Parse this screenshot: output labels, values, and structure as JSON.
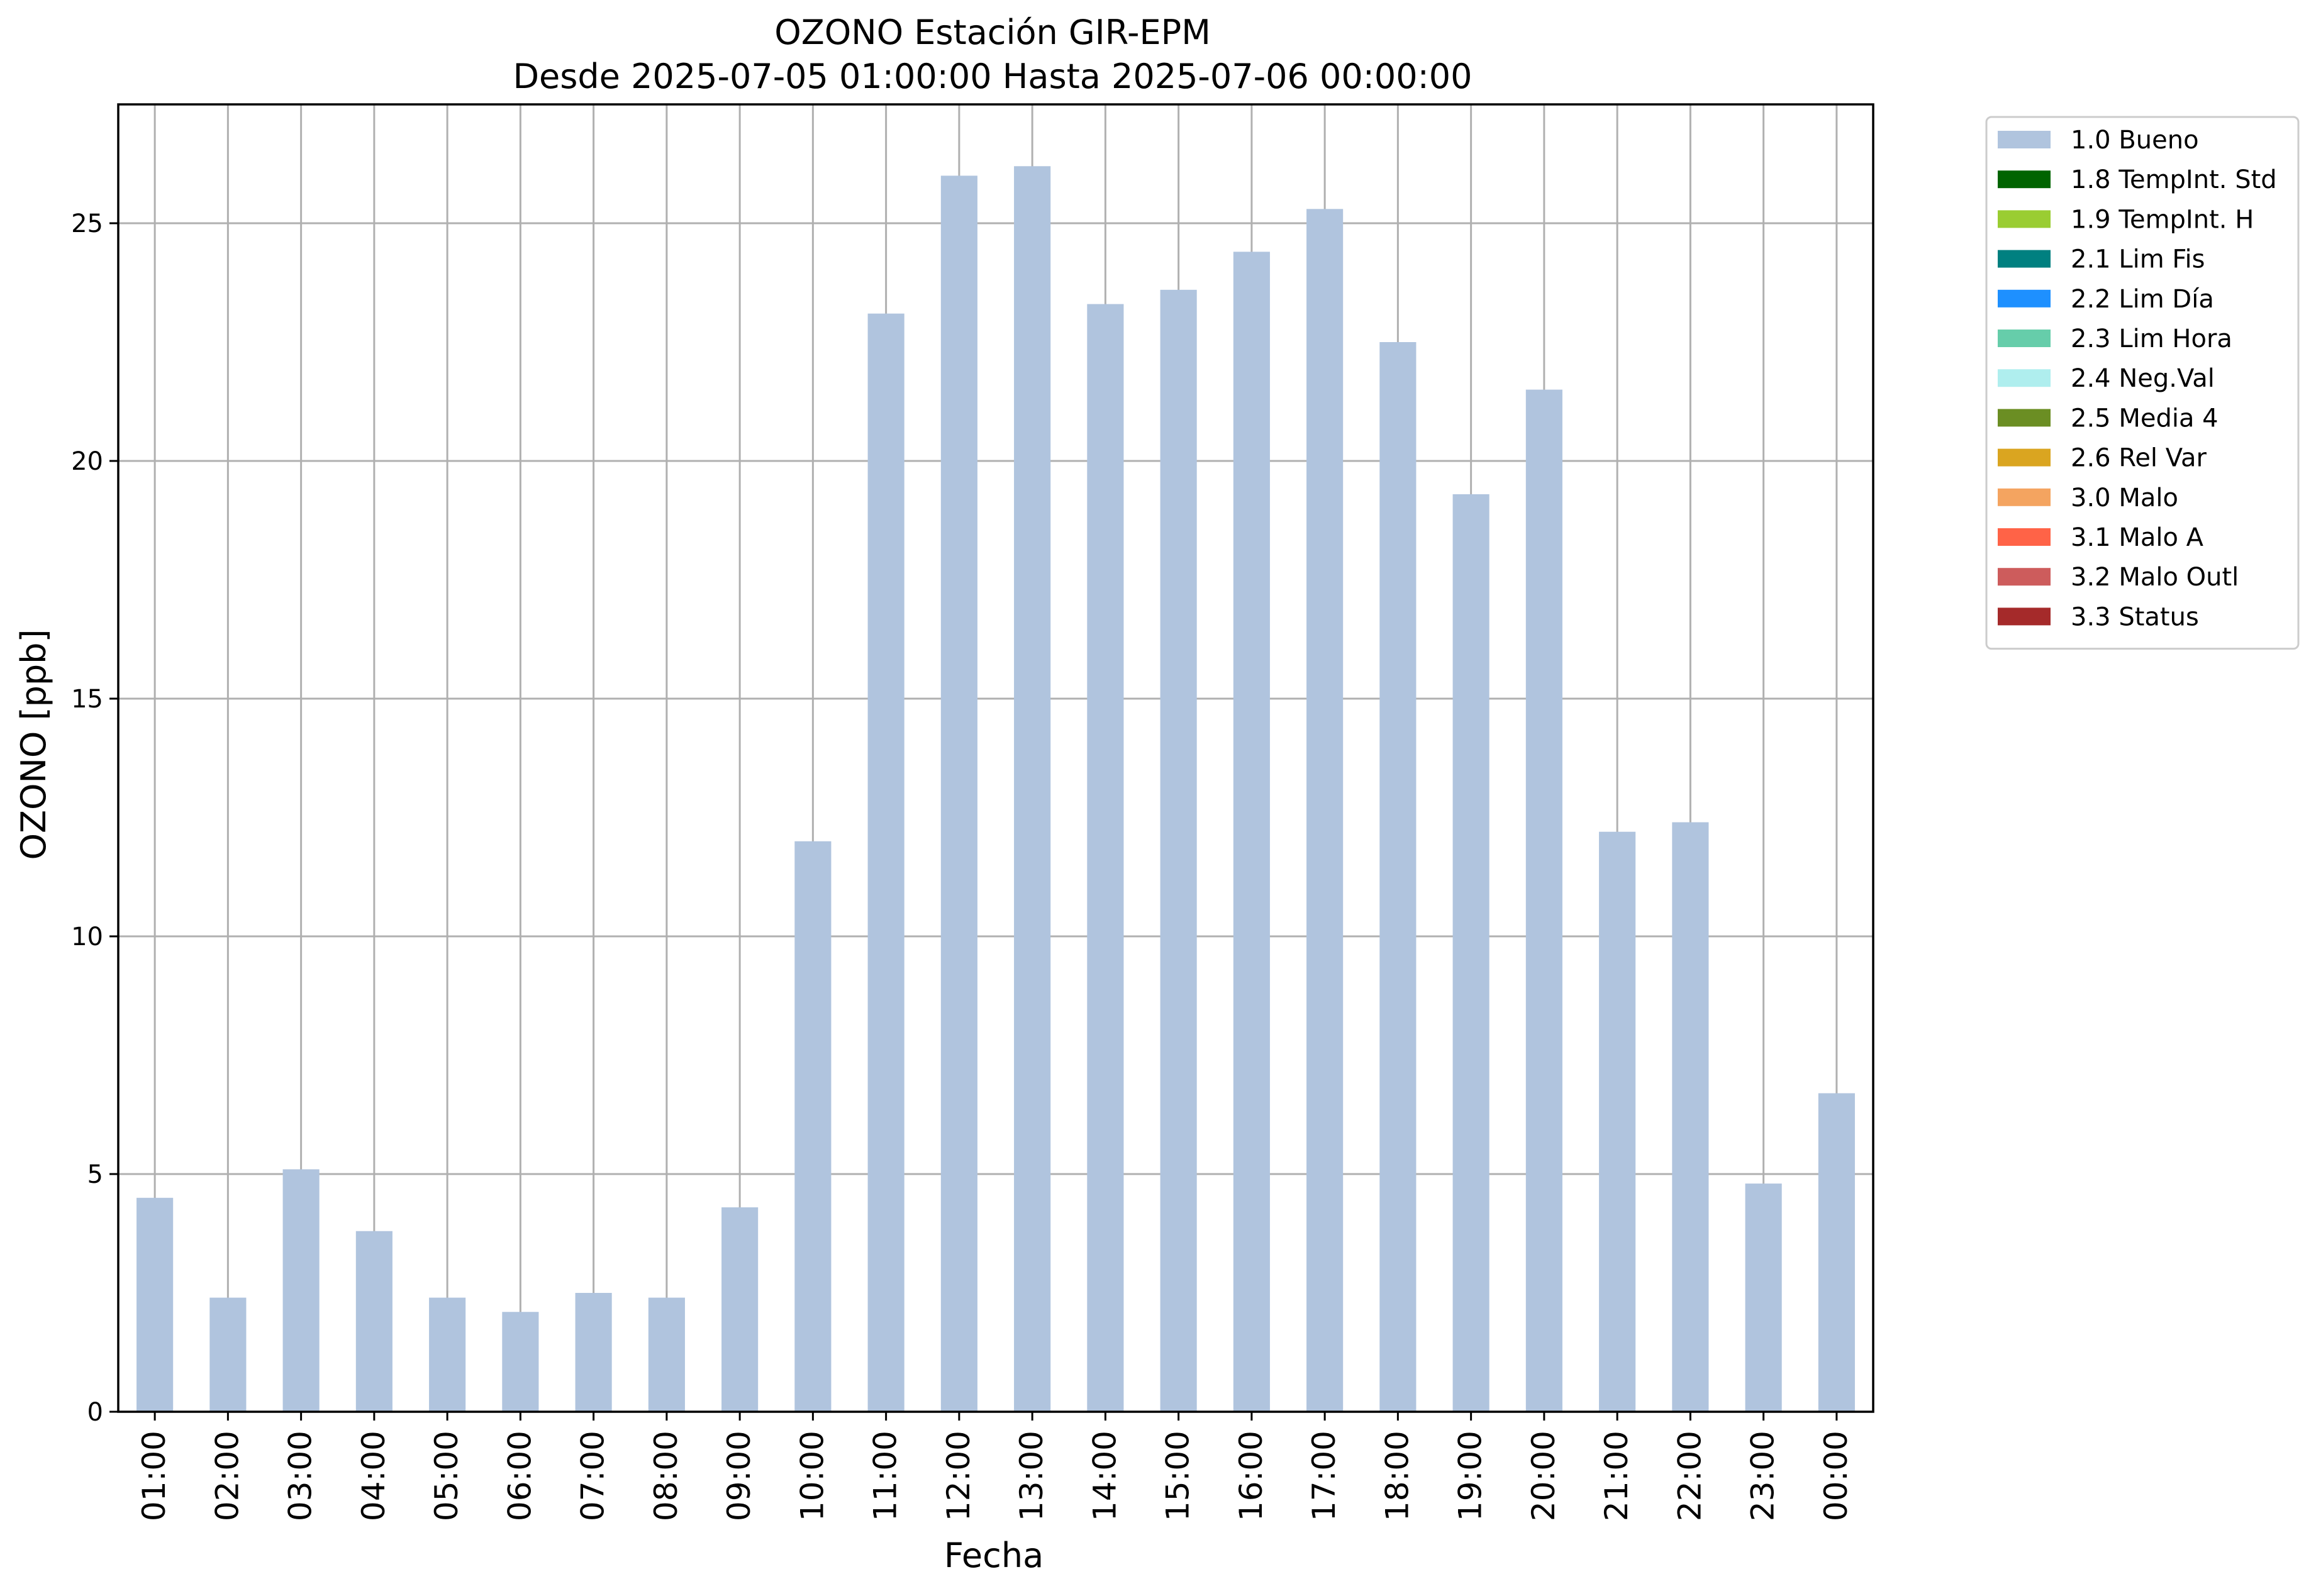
{
  "chart_data": {
    "type": "bar",
    "title": "OZONO Estación GIR-EPM",
    "subtitle": "Desde 2025-07-05 01:00:00 Hasta 2025-07-06 00:00:00",
    "xlabel": "Fecha",
    "ylabel": "OZONO [ppb]",
    "ylim": [
      0,
      27.5
    ],
    "yticks": [
      0,
      5,
      10,
      15,
      20,
      25
    ],
    "grid": true,
    "legend_position": "outside-top-right",
    "categories": [
      "01:00",
      "02:00",
      "03:00",
      "04:00",
      "05:00",
      "06:00",
      "07:00",
      "08:00",
      "09:00",
      "10:00",
      "11:00",
      "12:00",
      "13:00",
      "14:00",
      "15:00",
      "16:00",
      "17:00",
      "18:00",
      "19:00",
      "20:00",
      "21:00",
      "22:00",
      "23:00",
      "00:00"
    ],
    "series": [
      {
        "name": "1.0 Bueno",
        "color": "#b0c4de",
        "values": [
          4.5,
          2.4,
          5.1,
          3.8,
          2.4,
          2.1,
          2.5,
          2.4,
          4.3,
          12.0,
          23.1,
          26.0,
          26.2,
          23.3,
          23.6,
          24.4,
          25.3,
          22.5,
          19.3,
          21.5,
          12.2,
          12.4,
          4.8,
          6.7
        ]
      }
    ],
    "legend": [
      {
        "label": "1.0 Bueno",
        "color": "#b0c4de"
      },
      {
        "label": "1.8 TempInt. Std",
        "color": "#006400"
      },
      {
        "label": "1.9 TempInt. H",
        "color": "#9acd32"
      },
      {
        "label": "2.1 Lim Fis",
        "color": "#008080"
      },
      {
        "label": "2.2 Lim Día",
        "color": "#1e90ff"
      },
      {
        "label": "2.3 Lim Hora",
        "color": "#66cdaa"
      },
      {
        "label": "2.4 Neg.Val",
        "color": "#afeeee"
      },
      {
        "label": "2.5 Media 4",
        "color": "#6b8e23"
      },
      {
        "label": "2.6 Rel Var",
        "color": "#daa520"
      },
      {
        "label": "3.0 Malo",
        "color": "#f4a460"
      },
      {
        "label": "3.1 Malo A",
        "color": "#ff6347"
      },
      {
        "label": "3.2 Malo Outl",
        "color": "#cd5c5c"
      },
      {
        "label": "3.3 Status",
        "color": "#a52a2a"
      }
    ],
    "colors": {
      "grid": "#b0b0b0",
      "axis": "#000000"
    }
  }
}
